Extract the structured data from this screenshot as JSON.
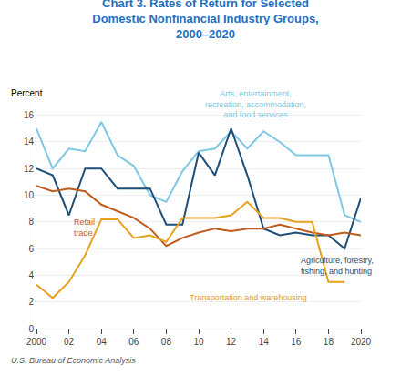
{
  "chart_data": {
    "type": "line",
    "title": "Chart 3. Rates of Return for Selected\nDomestic Nonfinancial Industry Groups,\n2000–2020",
    "title_color": "#1F70C1",
    "ylabel": "Percent",
    "footer": "U.S. Bureau of Economic Analysis",
    "x": [
      2000,
      2001,
      2002,
      2003,
      2004,
      2005,
      2006,
      2007,
      2008,
      2009,
      2010,
      2011,
      2012,
      2013,
      2014,
      2015,
      2016,
      2017,
      2018,
      2019,
      2020
    ],
    "series": [
      {
        "name": "Arts, entertainment,\nrecreation, accommodation,\nand food services",
        "color": "#7EC8E3",
        "values": [
          15.0,
          12.0,
          13.5,
          13.3,
          15.5,
          13.0,
          12.2,
          10.0,
          9.5,
          11.8,
          13.3,
          13.5,
          14.8,
          13.5,
          14.8,
          14.0,
          13.0,
          13.0,
          13.0,
          8.5,
          8.0
        ]
      },
      {
        "name": "Agriculture, forestry,\nfishing, and hunting",
        "color": "#1F4E79",
        "values": [
          12.0,
          11.5,
          8.5,
          12.0,
          12.0,
          10.5,
          10.5,
          10.5,
          7.8,
          7.8,
          13.2,
          11.5,
          15.0,
          11.5,
          7.5,
          7.0,
          7.2,
          7.0,
          7.0,
          6.0,
          9.8
        ]
      },
      {
        "name": "Retail\ntrade",
        "color": "#C05B1C",
        "values": [
          10.7,
          10.3,
          10.5,
          10.3,
          9.3,
          8.8,
          8.3,
          7.5,
          6.2,
          6.8,
          7.2,
          7.5,
          7.3,
          7.5,
          7.5,
          7.8,
          7.5,
          7.2,
          7.0,
          7.2,
          7.0
        ]
      },
      {
        "name": "Transportation and warehousing",
        "color": "#E8A020",
        "values": [
          3.3,
          2.3,
          3.5,
          5.5,
          8.2,
          8.2,
          6.8,
          7.0,
          6.5,
          8.3,
          8.3,
          8.3,
          8.5,
          9.5,
          8.3,
          8.3,
          8.0,
          8.0,
          3.5,
          3.5,
          null
        ]
      }
    ],
    "annotations": [
      {
        "text": "Arts, entertainment,\nrecreation, accommodation,\nand food services",
        "x": 2013.5,
        "y": 15.6,
        "color": "#7EC8E3"
      },
      {
        "text": "Agriculture, forestry,\nfishing, and hunting",
        "x": 2016.2,
        "y": 5.6,
        "color": "#1F4E79"
      },
      {
        "text": "Retail\ntrade",
        "x": 2002.2,
        "y": 8.5,
        "color": "#C05B1C"
      },
      {
        "text": "Transportation and warehousing",
        "x": 2009.3,
        "y": 2.8,
        "color": "#E8A020"
      }
    ],
    "xlim": [
      2000,
      2020
    ],
    "xticks": [
      2000,
      {
        "value": 2002,
        "label": "02"
      },
      {
        "value": 2004,
        "label": "04"
      },
      {
        "value": 2006,
        "label": "06"
      },
      {
        "value": 2008,
        "label": "08"
      },
      {
        "value": 2010,
        "label": "10"
      },
      {
        "value": 2012,
        "label": "12"
      },
      {
        "value": 2014,
        "label": "14"
      },
      {
        "value": 2016,
        "label": "16"
      },
      {
        "value": 2018,
        "label": "18"
      },
      2020
    ],
    "ylim": [
      0,
      17
    ],
    "yticks": [
      0,
      2,
      4,
      6,
      8,
      10,
      12,
      14,
      16
    ],
    "grid": true
  }
}
